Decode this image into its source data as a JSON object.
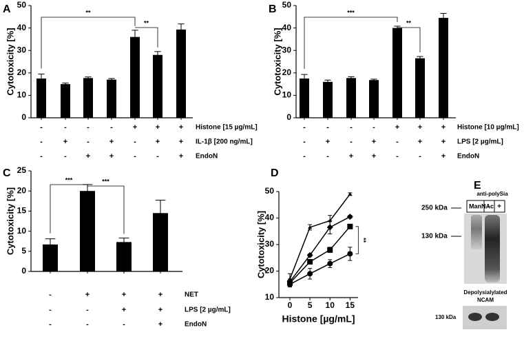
{
  "chart_data": [
    {
      "type": "bar",
      "panel_label": "A",
      "y_label": "Cytotoxicity [%]",
      "color": "#000000",
      "values": [
        17.5,
        15,
        17.7,
        17,
        36,
        28,
        39.3
      ],
      "errors": [
        2,
        0.5,
        0.5,
        0.5,
        3,
        1.5,
        2.5
      ],
      "ylim": [
        0,
        50
      ],
      "yticks": [
        0,
        10,
        20,
        30,
        40,
        50
      ],
      "conditions": [
        {
          "name": "Histone [15 µg/mL]",
          "signs": [
            "-",
            "-",
            "-",
            "-",
            "+",
            "+",
            "+"
          ]
        },
        {
          "name": "IL-1β [200 ng/mL]",
          "signs": [
            "-",
            "+",
            "-",
            "+",
            "-",
            "+",
            "+"
          ]
        },
        {
          "name": "EndoN",
          "signs": [
            "-",
            "-",
            "+",
            "+",
            "-",
            "-",
            "+"
          ]
        }
      ],
      "significance": [
        {
          "from": 0,
          "to": 4,
          "label": "**"
        },
        {
          "from": 4,
          "to": 5,
          "label": "**"
        }
      ]
    },
    {
      "type": "bar",
      "panel_label": "B",
      "y_label": "Cytotoxicity [%]",
      "color": "#000000",
      "values": [
        17.5,
        16,
        17.7,
        16.8,
        40,
        26.5,
        44.5
      ],
      "errors": [
        1.8,
        0.8,
        0.6,
        0.4,
        0.8,
        0.8,
        2
      ],
      "ylim": [
        0,
        50
      ],
      "yticks": [
        0,
        10,
        20,
        30,
        40,
        50
      ],
      "conditions": [
        {
          "name": "Histone [10 µg/mL]",
          "signs": [
            "-",
            "-",
            "-",
            "-",
            "+",
            "+",
            "+"
          ]
        },
        {
          "name": "LPS [2 µg/mL]",
          "signs": [
            "-",
            "+",
            "-",
            "+",
            "-",
            "+",
            "+"
          ]
        },
        {
          "name": "EndoN",
          "signs": [
            "-",
            "-",
            "+",
            "+",
            "-",
            "-",
            "+"
          ]
        }
      ],
      "significance": [
        {
          "from": 0,
          "to": 4,
          "label": "***"
        },
        {
          "from": 4,
          "to": 5,
          "label": "**"
        }
      ]
    },
    {
      "type": "bar",
      "panel_label": "C",
      "y_label": "Cytotoxicity [%]",
      "color": "#000000",
      "values": [
        6.7,
        20,
        7.3,
        14.5
      ],
      "errors": [
        1.4,
        1.6,
        1.0,
        3.2
      ],
      "ylim": [
        0,
        25
      ],
      "yticks": [
        0,
        5,
        10,
        15,
        20,
        25
      ],
      "conditions": [
        {
          "name": "NET",
          "signs": [
            "-",
            "+",
            "+",
            "+"
          ]
        },
        {
          "name": "LPS [2 µg/mL]",
          "signs": [
            "-",
            "-",
            "+",
            "+"
          ]
        },
        {
          "name": "EndoN",
          "signs": [
            "-",
            "-",
            "-",
            "+"
          ]
        }
      ],
      "significance": [
        {
          "from": 0,
          "to": 1,
          "label": "***"
        },
        {
          "from": 1,
          "to": 2,
          "label": "***"
        }
      ]
    },
    {
      "type": "line",
      "panel_label": "D",
      "y_label": "Cytotoxicity [%]",
      "x_label": "Histone [µg/mL]",
      "x": [
        0,
        5,
        10,
        15
      ],
      "xlim": [
        -2.75,
        17
      ],
      "xticks": [
        0,
        5,
        10,
        15
      ],
      "ylim": [
        10,
        50
      ],
      "yticks": [
        10,
        20,
        30,
        40,
        50
      ],
      "series": [
        {
          "marker": "triangle",
          "color": "#000000",
          "values": [
            17,
            36.5,
            39,
            49
          ],
          "errors": [
            2,
            1,
            2,
            0.5
          ]
        },
        {
          "marker": "diamond",
          "color": "#000000",
          "values": [
            16,
            26,
            36.5,
            40.5
          ],
          "errors": [
            1,
            0.5,
            2.5,
            0.5
          ]
        },
        {
          "marker": "square",
          "color": "#000000",
          "values": [
            15.5,
            23.5,
            28,
            36.8
          ],
          "errors": [
            1,
            0.5,
            1,
            0.5
          ]
        },
        {
          "marker": "circle",
          "color": "#000000",
          "values": [
            15,
            19,
            22.8,
            26.5
          ],
          "errors": [
            1,
            2,
            1.5,
            2.5
          ]
        }
      ],
      "significance": [
        {
          "series": [
            2,
            3
          ],
          "label": "**"
        }
      ]
    }
  ],
  "blot": {
    "panel_label": "E",
    "antibody": "anti-polySia",
    "treatment": "ManNAc",
    "lanes": [
      "-",
      "+"
    ],
    "markers": [
      "250 kDa",
      "130 kDa"
    ],
    "lower_title": [
      "Depolysialylated",
      "NCAM"
    ],
    "lower_marker": "130 kDa"
  }
}
